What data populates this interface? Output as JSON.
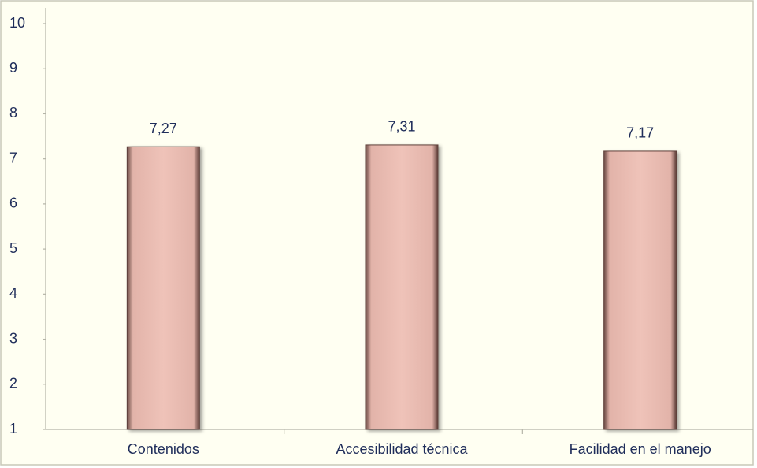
{
  "chart_data": {
    "type": "bar",
    "categories": [
      "Contenidos",
      "Accesibilidad técnica",
      "Facilidad en el manejo"
    ],
    "values": [
      7.27,
      7.31,
      7.17
    ],
    "value_labels": [
      "7,27",
      "7,31",
      "7,17"
    ],
    "color": "#ebbdb3",
    "ylim": [
      1,
      10
    ],
    "yticks": [
      1,
      2,
      3,
      4,
      5,
      6,
      7,
      8,
      9,
      10
    ],
    "grid": false
  }
}
